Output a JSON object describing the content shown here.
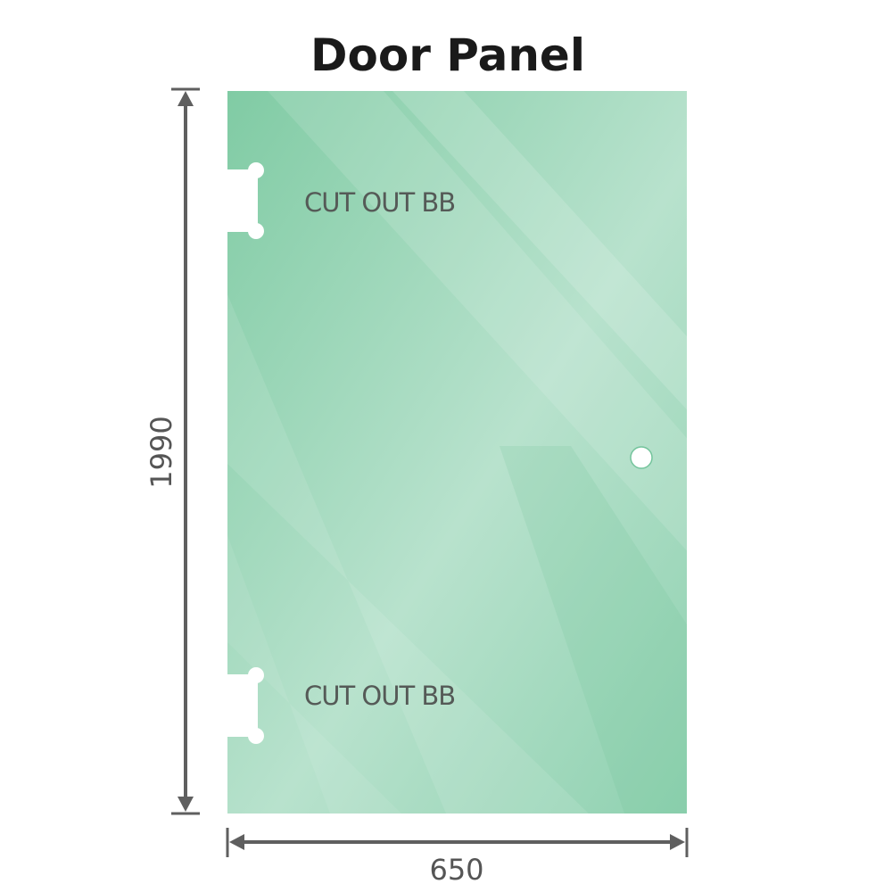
{
  "title": "Door Panel",
  "cutout_top_label": "CUT OUT BB",
  "cutout_bottom_label": "CUT OUT BB",
  "height_dimension": "1990",
  "width_dimension": "650",
  "colors": {
    "glass": "#86cfaa",
    "glass_light": "#b9e3cf",
    "dimension_line": "#5f5f5f",
    "text": "#555a57"
  }
}
